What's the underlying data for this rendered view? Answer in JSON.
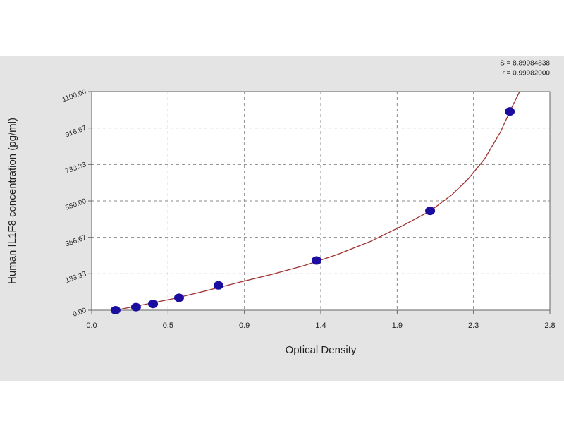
{
  "chart_data": {
    "type": "scatter",
    "annotations": [
      "S = 8.89984838",
      "r = 0.99982000"
    ],
    "xlabel": "Optical Density",
    "ylabel": "Human IL1F8 concentration (pg/ml)",
    "xlim": [
      0,
      2.8
    ],
    "ylim": [
      0,
      1100
    ],
    "xticks": [
      {
        "value": 0,
        "label": "0.0"
      },
      {
        "value": 0.4667,
        "label": "0.5"
      },
      {
        "value": 0.9333,
        "label": "0.9"
      },
      1.4,
      {
        "value": 1.8667,
        "label": "1.9"
      },
      {
        "value": 2.3333,
        "label": "2.3"
      },
      2.8
    ],
    "yticks": [
      {
        "value": 0,
        "label": "0.00"
      },
      {
        "value": 183.33,
        "label": "183.33"
      },
      {
        "value": 366.67,
        "label": "366.67"
      },
      {
        "value": 550,
        "label": "550.00"
      },
      {
        "value": 733.33,
        "label": "733.33"
      },
      {
        "value": 916.67,
        "label": "916.67"
      },
      {
        "value": 1100,
        "label": "1100.00"
      }
    ],
    "grid": true,
    "series": [
      {
        "color": "#1a0da0",
        "x": [
          0.146,
          0.271,
          0.375,
          0.534,
          0.775,
          1.374,
          2.068,
          2.555
        ],
        "values": [
          0,
          15.6,
          31.25,
          62.5,
          125,
          250,
          500,
          1000
        ]
      },
      {
        "color": "#a03030",
        "x": [
          0.146,
          0.3,
          0.5,
          0.7,
          0.9,
          1.1,
          1.3,
          1.5,
          1.7,
          1.9,
          2.07,
          2.2,
          2.3,
          2.4,
          2.5,
          2.555,
          2.615
        ],
        "values": [
          0,
          25,
          58,
          98,
          140,
          180,
          225,
          280,
          345,
          425,
          500,
          580,
          660,
          760,
          900,
          1000,
          1100
        ]
      }
    ]
  }
}
